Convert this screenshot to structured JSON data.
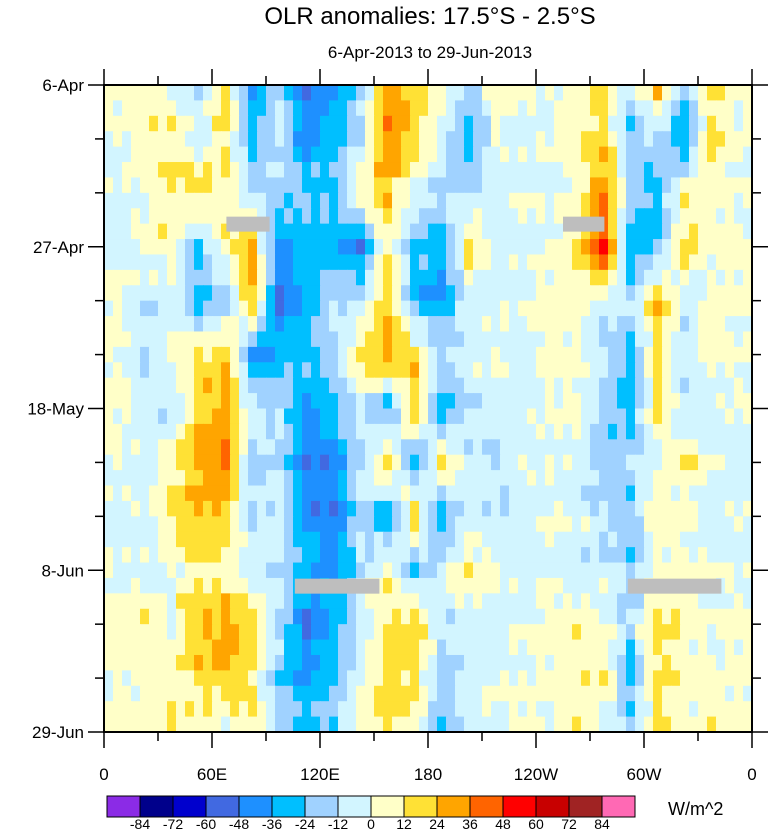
{
  "chart_data": {
    "type": "heatmap",
    "title": "OLR anomalies: 17.5°S - 2.5°S",
    "subtitle": "6-Apr-2013 to 29-Jun-2013",
    "units_label": "W/m^2",
    "x_ticks": [
      {
        "lon": 0,
        "label": "0"
      },
      {
        "lon": 60,
        "label": "60E"
      },
      {
        "lon": 120,
        "label": "120E"
      },
      {
        "lon": 180,
        "label": "180"
      },
      {
        "lon": 240,
        "label": "120W"
      },
      {
        "lon": 300,
        "label": "60W"
      },
      {
        "lon": 360,
        "label": "0"
      }
    ],
    "y_ticks": [
      {
        "day": 0,
        "label": "6-Apr"
      },
      {
        "day": 21,
        "label": "27-Apr"
      },
      {
        "day": 42,
        "label": "18-May"
      },
      {
        "day": 63,
        "label": "8-Jun"
      },
      {
        "day": 84,
        "label": "29-Jun"
      }
    ],
    "xlim": [
      0,
      360
    ],
    "ylim_days": [
      0,
      84
    ],
    "levels": [
      -84,
      -72,
      -60,
      -48,
      -36,
      -24,
      -12,
      0,
      12,
      24,
      36,
      48,
      60,
      72,
      84
    ],
    "colors": [
      "#8B2BE6",
      "#00008B",
      "#0000CD",
      "#4169E1",
      "#1E90FF",
      "#00BFFF",
      "#A0D2FF",
      "#D2F5FF",
      "#FFFFC8",
      "#FFE135",
      "#FFA500",
      "#FF6400",
      "#FF0000",
      "#C80000",
      "#A02323",
      "#FF69B4"
    ],
    "lons": [
      0,
      15,
      30,
      45,
      60,
      75,
      90,
      105,
      120,
      135,
      150,
      165,
      180,
      195,
      210,
      225,
      240,
      255,
      270,
      285,
      300,
      315,
      330,
      345
    ],
    "dates": [
      "6-Apr",
      "13-Apr",
      "20-Apr",
      "27-Apr",
      "4-May",
      "11-May",
      "18-May",
      "25-May",
      "1-Jun",
      "8-Jun",
      "15-Jun",
      "22-Jun",
      "29-Jun"
    ],
    "values": [
      [
        6,
        12,
        0,
        -12,
        18,
        -40,
        -12,
        -50,
        -40,
        -20,
        30,
        18,
        6,
        -20,
        6,
        0,
        -6,
        6,
        12,
        -12,
        24,
        -20,
        12,
        6
      ],
      [
        0,
        6,
        12,
        -6,
        12,
        -30,
        -6,
        -45,
        -30,
        -12,
        36,
        20,
        -6,
        -30,
        0,
        -6,
        0,
        12,
        18,
        -24,
        -12,
        -36,
        18,
        0
      ],
      [
        -6,
        0,
        12,
        18,
        6,
        -12,
        -18,
        -20,
        -24,
        12,
        24,
        -6,
        -12,
        -12,
        -6,
        0,
        -6,
        6,
        36,
        -12,
        -30,
        12,
        6,
        0
      ],
      [
        -6,
        6,
        6,
        -24,
        12,
        24,
        -40,
        -30,
        -30,
        -48,
        12,
        -24,
        -30,
        12,
        -6,
        -6,
        0,
        12,
        54,
        -36,
        -24,
        18,
        0,
        6
      ],
      [
        6,
        -12,
        -6,
        -30,
        -20,
        24,
        -50,
        -36,
        -12,
        -12,
        24,
        -30,
        -40,
        -6,
        -6,
        0,
        6,
        6,
        -6,
        -12,
        24,
        -12,
        6,
        0
      ],
      [
        0,
        -12,
        6,
        12,
        24,
        -40,
        -30,
        -24,
        -12,
        18,
        30,
        18,
        -12,
        -6,
        0,
        -6,
        6,
        0,
        -12,
        -30,
        12,
        -6,
        6,
        0
      ],
      [
        6,
        -6,
        -12,
        18,
        30,
        -6,
        -12,
        -36,
        -30,
        -12,
        -30,
        24,
        -36,
        -12,
        -6,
        -6,
        0,
        6,
        -18,
        -30,
        18,
        -12,
        -6,
        0
      ],
      [
        0,
        -6,
        6,
        30,
        36,
        -18,
        -12,
        -48,
        -40,
        -12,
        18,
        -30,
        18,
        -6,
        -12,
        0,
        0,
        -6,
        -24,
        -12,
        -6,
        12,
        0,
        -6
      ],
      [
        -6,
        0,
        12,
        24,
        18,
        -12,
        -6,
        -40,
        -48,
        -12,
        -36,
        24,
        -36,
        -6,
        -12,
        -6,
        0,
        0,
        -12,
        -24,
        12,
        0,
        -6,
        0
      ],
      [
        0,
        -6,
        0,
        12,
        6,
        -6,
        -12,
        -30,
        -40,
        -12,
        6,
        -24,
        -6,
        12,
        0,
        -6,
        0,
        -12,
        -6,
        -20,
        0,
        6,
        0,
        -6
      ],
      [
        6,
        12,
        0,
        24,
        30,
        18,
        -12,
        -48,
        -30,
        -6,
        12,
        24,
        -12,
        -6,
        -6,
        0,
        6,
        12,
        0,
        -12,
        18,
        6,
        0,
        6
      ],
      [
        0,
        6,
        6,
        18,
        24,
        12,
        -24,
        -36,
        -24,
        -6,
        18,
        12,
        -18,
        -6,
        0,
        0,
        0,
        6,
        12,
        -30,
        12,
        6,
        6,
        0
      ],
      [
        6,
        0,
        12,
        6,
        -6,
        12,
        -12,
        -30,
        -18,
        6,
        12,
        12,
        -24,
        0,
        0,
        6,
        0,
        12,
        -6,
        -12,
        18,
        0,
        12,
        6
      ]
    ],
    "missing": [
      {
        "day": 18,
        "lon": [
          68,
          92
        ]
      },
      {
        "day": 18,
        "lon": [
          255,
          278
        ]
      },
      {
        "day": 65,
        "lon": [
          106,
          153
        ]
      },
      {
        "day": 65,
        "lon": [
          291,
          343
        ]
      }
    ],
    "missing_color": "#BEBEBE"
  }
}
